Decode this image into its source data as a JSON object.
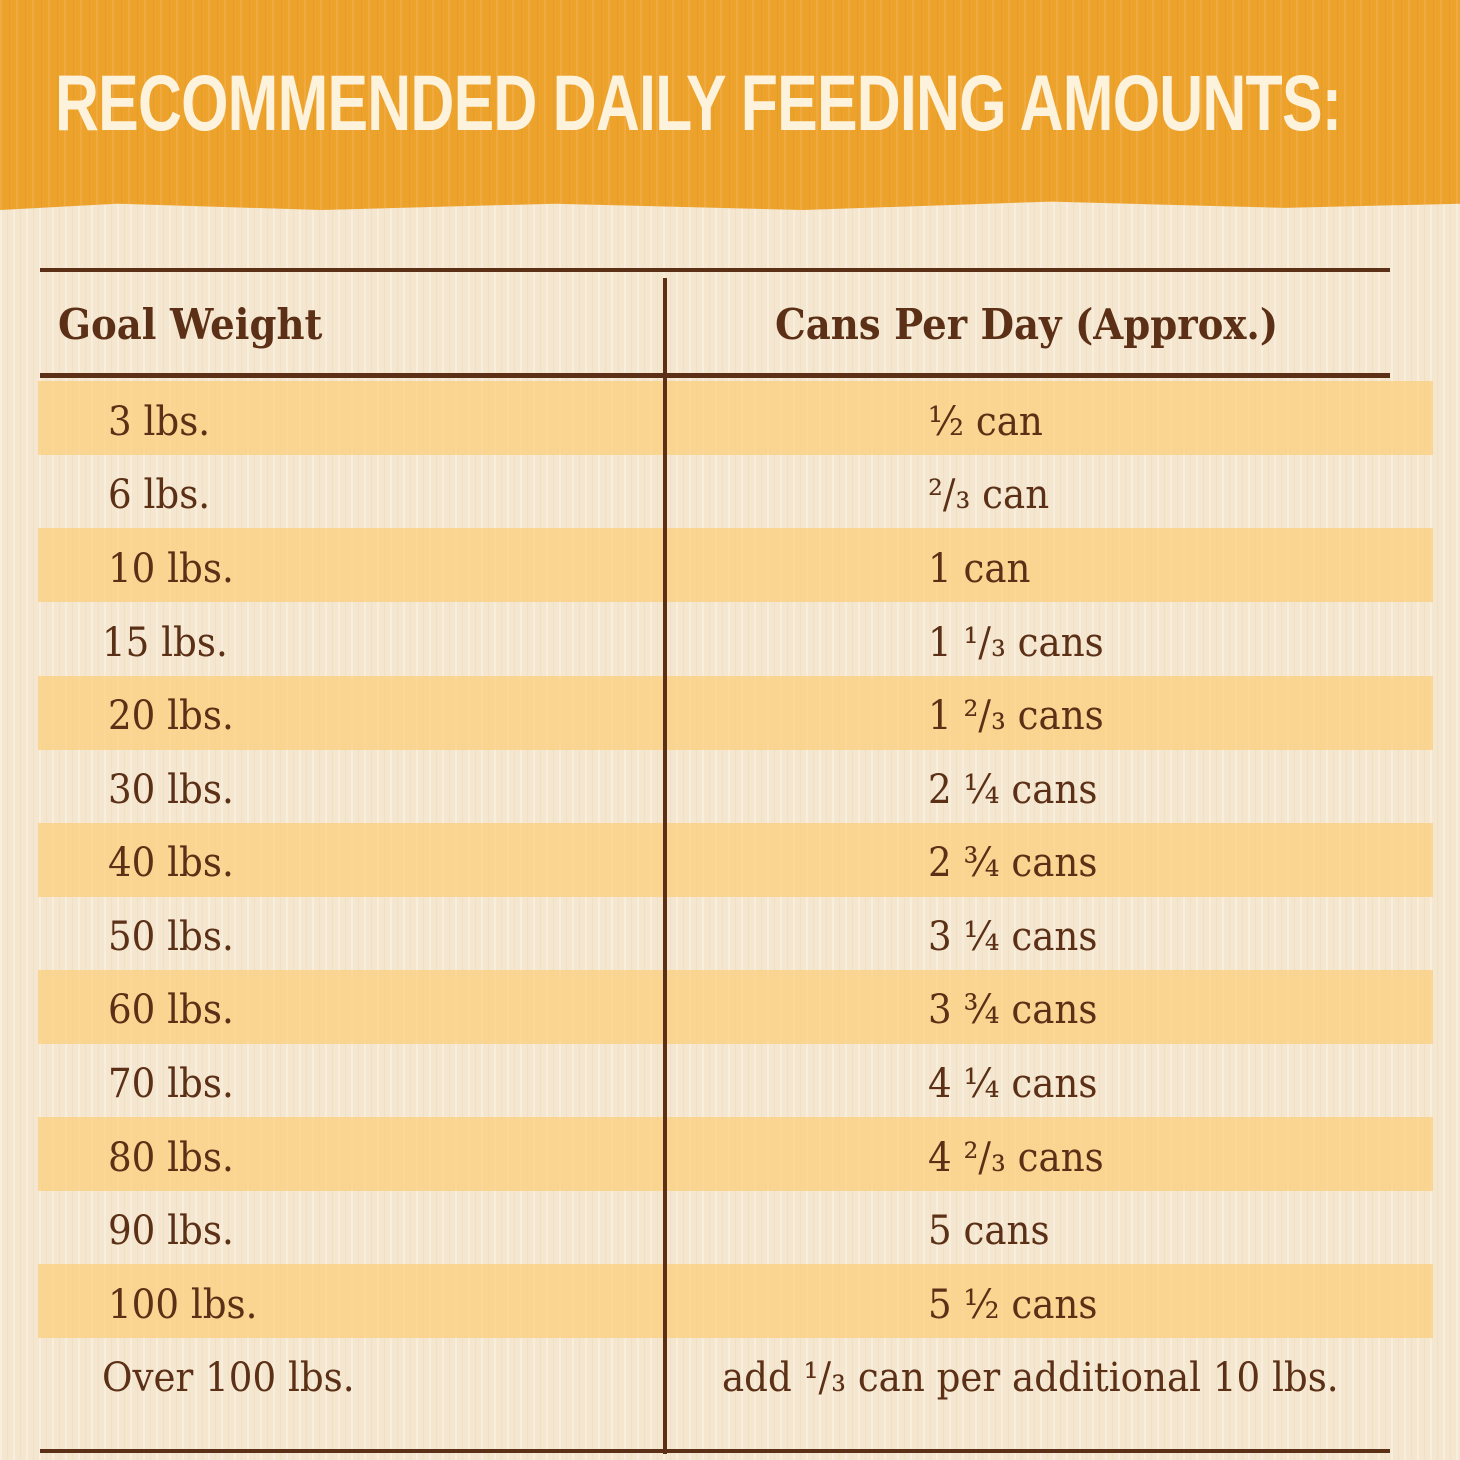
{
  "title": "RECOMMENDED DAILY FEEDING AMOUNTS:",
  "colors": {
    "banner": "#eda22c",
    "title_text": "#fdf2dc",
    "table_text": "#5b3016",
    "stripe": "#fbce78",
    "background": "#f4e6cf"
  },
  "table": {
    "headers": {
      "weight": "Goal Weight",
      "cans": "Cans Per Day (Approx.)"
    },
    "rows": [
      {
        "weight": "3 lbs.",
        "cans": "½ can"
      },
      {
        "weight": "6 lbs.",
        "cans": "²/₃ can"
      },
      {
        "weight": "10 lbs.",
        "cans": "1 can"
      },
      {
        "weight": "15 lbs.",
        "cans": "1 ¹/₃ cans"
      },
      {
        "weight": "20 lbs.",
        "cans": "1 ²/₃ cans"
      },
      {
        "weight": "30 lbs.",
        "cans": "2 ¼ cans"
      },
      {
        "weight": "40 lbs.",
        "cans": "2 ¾ cans"
      },
      {
        "weight": "50 lbs.",
        "cans": "3 ¼ cans"
      },
      {
        "weight": "60 lbs.",
        "cans": "3 ¾ cans"
      },
      {
        "weight": "70 lbs.",
        "cans": "4 ¼ cans"
      },
      {
        "weight": "80 lbs.",
        "cans": "4 ²/₃ cans"
      },
      {
        "weight": "90 lbs.",
        "cans": "5 cans"
      },
      {
        "weight": "100 lbs.",
        "cans": "5 ½ cans"
      },
      {
        "weight": "Over 100 lbs.",
        "cans": "add ¹/₃ can per additional 10 lbs."
      }
    ]
  }
}
